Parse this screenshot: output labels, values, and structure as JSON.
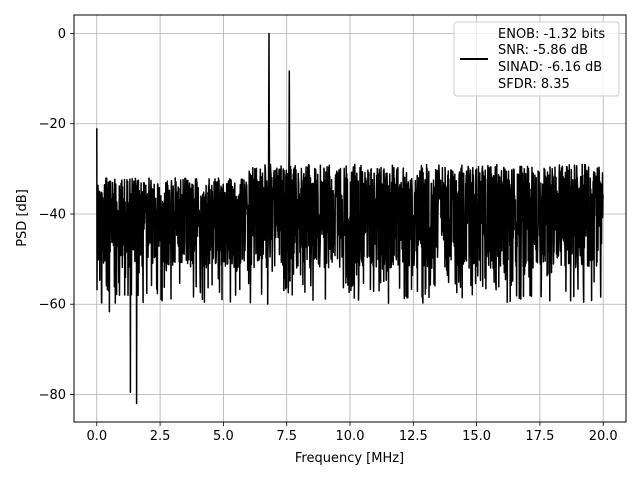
{
  "chart_data": {
    "type": "line",
    "xlabel": "Frequency [MHz]",
    "ylabel": "PSD [dB]",
    "xlim": [
      -0.9,
      20.9
    ],
    "ylim": [
      -86.1,
      4.1
    ],
    "xticks": [
      0.0,
      2.5,
      5.0,
      7.5,
      10.0,
      12.5,
      15.0,
      17.5,
      20.0
    ],
    "xtick_labels": [
      "0.0",
      "2.5",
      "5.0",
      "7.5",
      "10.0",
      "12.5",
      "15.0",
      "17.5",
      "20.0"
    ],
    "yticks": [
      0,
      -20,
      -40,
      -60,
      -80
    ],
    "ytick_labels": [
      "0",
      "−20",
      "−40",
      "−60",
      "−80"
    ],
    "grid": true,
    "legend_position": "top-right",
    "series_color": "#000000",
    "legend_lines": [
      "ENOB: -1.32 bits",
      "SNR: -5.86 dB",
      "SINAD: -6.16 dB",
      "SFDR: 8.35"
    ],
    "series": [
      {
        "x_range": [
          0.0,
          20.0
        ],
        "num_points": 2048,
        "noise_floor_center": -42,
        "noise_band": [
          -28,
          -55
        ],
        "peaks": [
          {
            "x": 0.0,
            "y": -21
          },
          {
            "x": 1.57,
            "y": -82
          },
          {
            "x": 1.33,
            "y": -79.5
          },
          {
            "x": 6.8,
            "y": 0
          },
          {
            "x": 7.6,
            "y": -8.3
          }
        ]
      }
    ]
  }
}
